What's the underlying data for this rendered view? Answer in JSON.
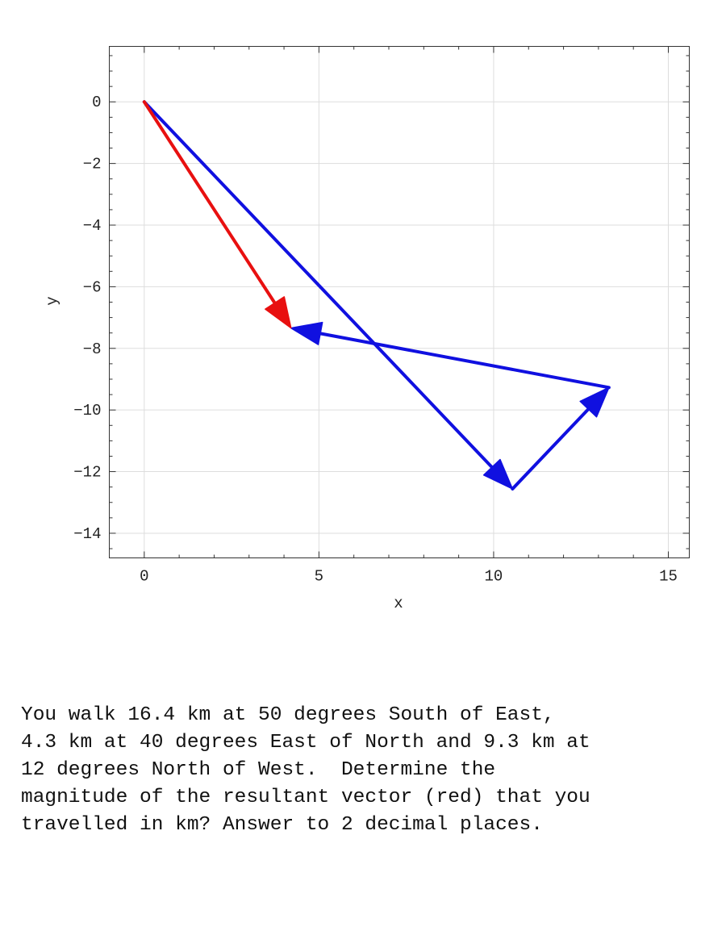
{
  "chart_data": {
    "type": "vector",
    "xlabel": "x",
    "ylabel": "y",
    "xlim": [
      -1,
      15.6
    ],
    "ylim": [
      -14.8,
      1.8
    ],
    "xticks": [
      0,
      5,
      10,
      15
    ],
    "yticks": [
      0,
      -2,
      -4,
      -6,
      -8,
      -10,
      -12,
      -14
    ],
    "x_minor_step": 1,
    "y_minor_step": 0.5,
    "grid": true,
    "vectors": [
      {
        "from": [
          0,
          0
        ],
        "to": [
          10.54,
          -12.56
        ],
        "color": "#1010e0"
      },
      {
        "from": [
          10.54,
          -12.56
        ],
        "to": [
          13.3,
          -9.27
        ],
        "color": "#1010e0"
      },
      {
        "from": [
          13.3,
          -9.27
        ],
        "to": [
          4.2,
          -7.34
        ],
        "color": "#1010e0"
      },
      {
        "from": [
          0,
          0
        ],
        "to": [
          4.2,
          -7.34
        ],
        "color": "#e81010"
      }
    ]
  },
  "question_text": "You walk 16.4 km at 50 degrees South of East,\n4.3 km at 40 degrees East of North and 9.3 km at\n12 degrees North of West.  Determine the\nmagnitude of the resultant vector (red) that you\ntravelled in km? Answer to 2 decimal places."
}
